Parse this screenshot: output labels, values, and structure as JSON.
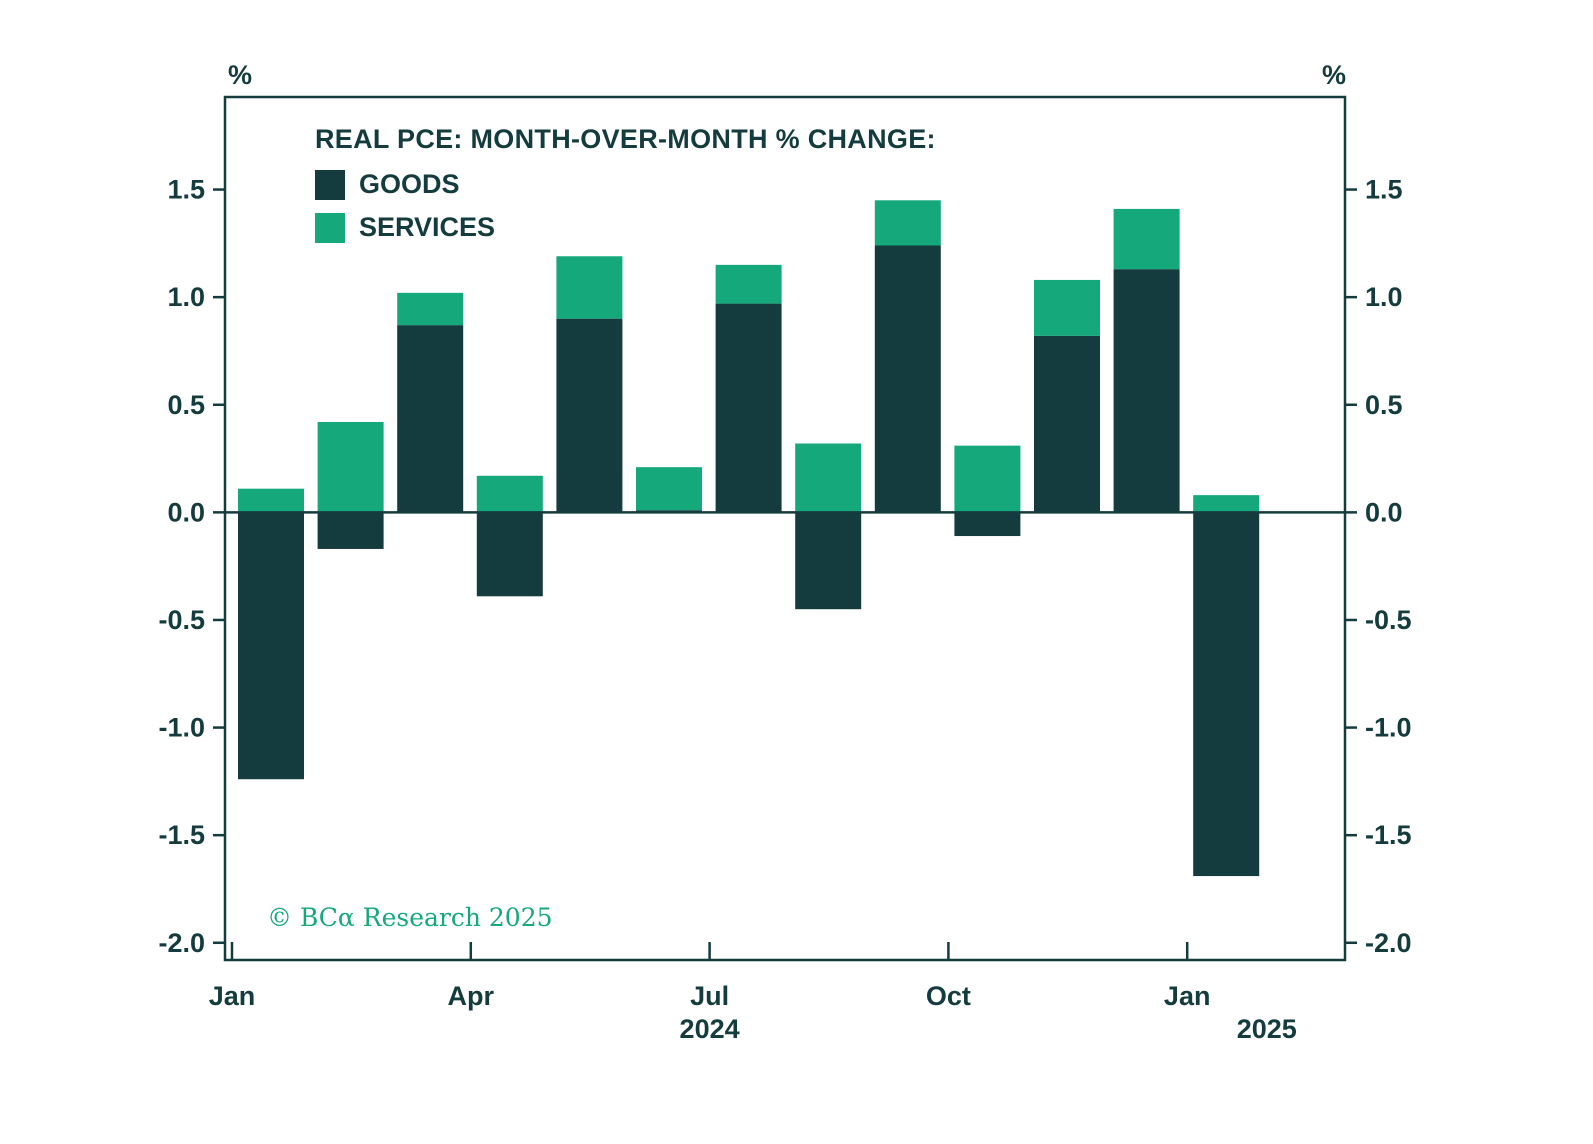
{
  "chart_data": {
    "type": "bar",
    "stacked": true,
    "title": "REAL PCE: MONTH-OVER-MONTH % CHANGE:",
    "categories": [
      "Jan",
      "Feb",
      "Mar",
      "Apr",
      "May",
      "Jun",
      "Jul",
      "Aug",
      "Sep",
      "Oct",
      "Nov",
      "Dec",
      "Jan"
    ],
    "series": [
      {
        "name": "GOODS",
        "color": "#143C3E",
        "values": [
          -1.24,
          -0.17,
          0.87,
          -0.39,
          0.9,
          0.01,
          0.97,
          -0.45,
          1.24,
          -0.11,
          0.82,
          1.13,
          -1.69
        ]
      },
      {
        "name": "SERVICES",
        "color": "#15A87B",
        "values": [
          0.11,
          0.42,
          0.15,
          0.17,
          0.29,
          0.2,
          0.18,
          0.32,
          0.21,
          0.31,
          0.26,
          0.28,
          0.08
        ]
      }
    ],
    "ylim": [
      -2.08,
      1.93
    ],
    "yticks": [
      1.5,
      1.0,
      0.5,
      0.0,
      -0.5,
      -1.0,
      -1.5,
      -2.0
    ],
    "y_unit": "%",
    "x_tick_indices": [
      0,
      3,
      6,
      9,
      12
    ],
    "x_tick_labels": [
      "Jan",
      "Apr",
      "Jul",
      "Oct",
      "Jan"
    ],
    "year_labels": [
      {
        "text": "2024",
        "month_pos": 6
      },
      {
        "text": "2025",
        "month_pos": 13
      }
    ],
    "grid": false,
    "legend_position": "top-left-inside",
    "axis_color": "#143C3E"
  },
  "footer": {
    "copyright": "© BCα Research 2025"
  }
}
